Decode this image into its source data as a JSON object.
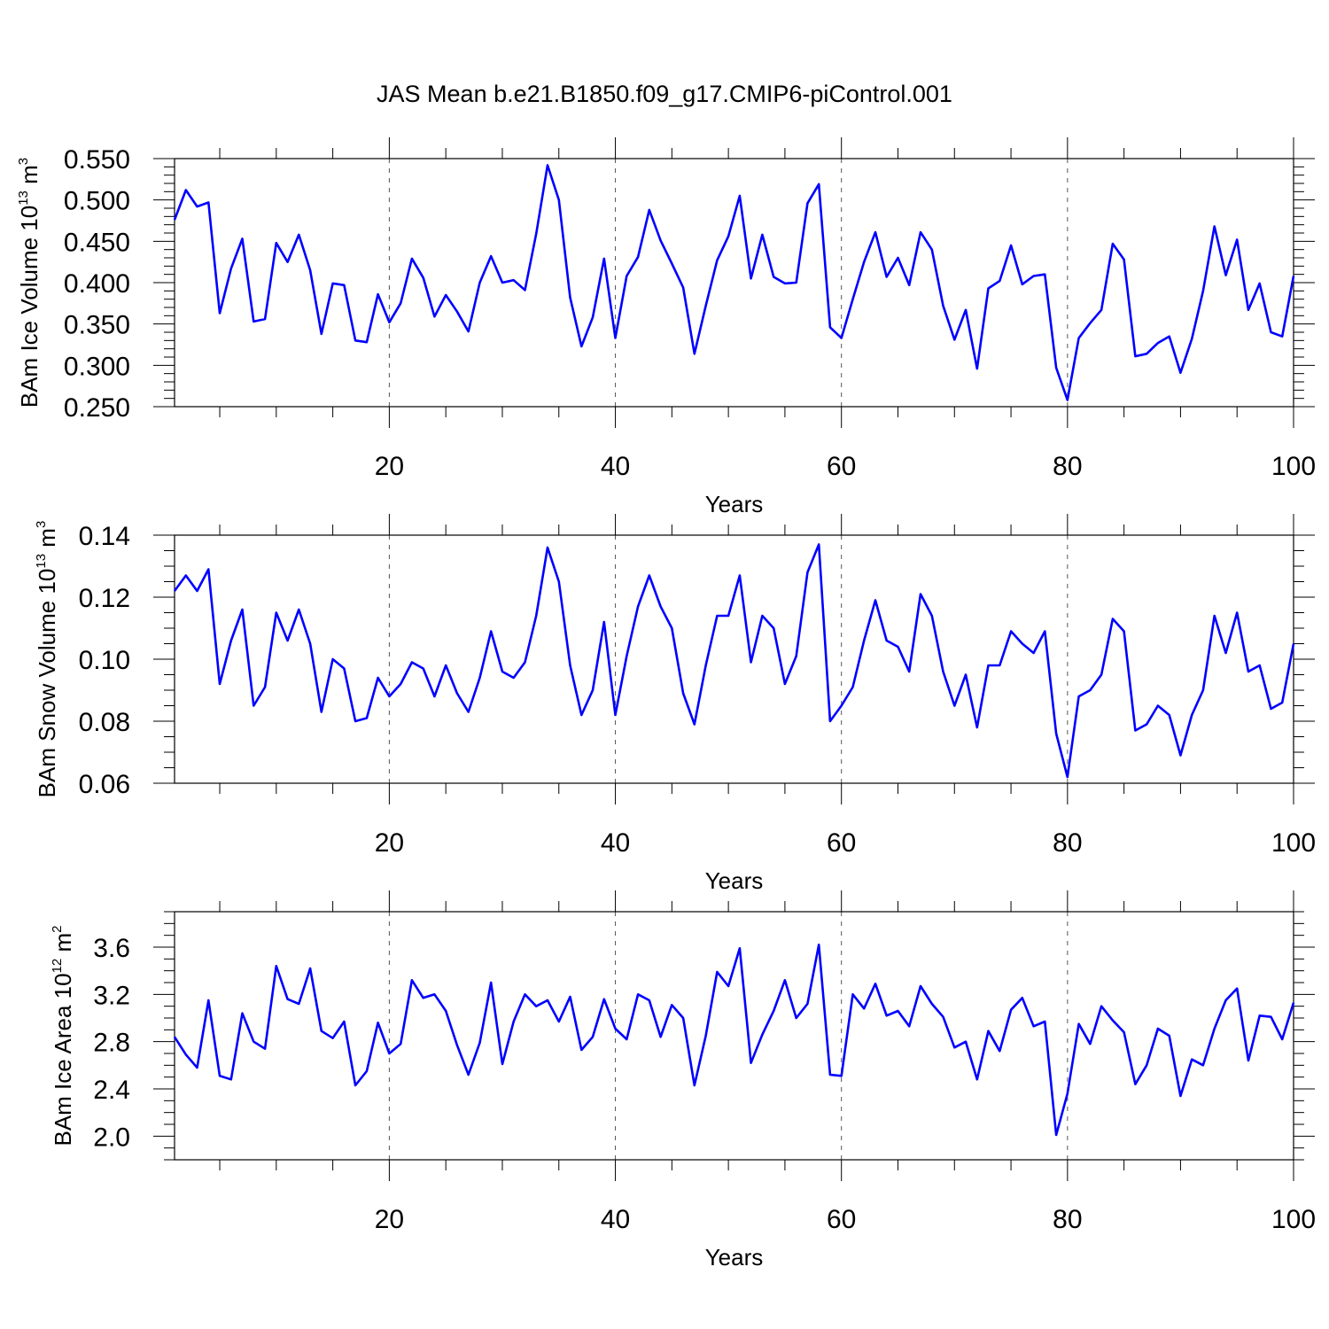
{
  "title": "JAS Mean b.e21.B1850.f09_g17.CMIP6-piControl.001",
  "chart_data": [
    {
      "type": "line",
      "title": "JAS Mean b.e21.B1850.f09_g17.CMIP6-piControl.001",
      "xlabel": "Years",
      "ylabel": {
        "main": "BAm Ice Volume 10",
        "sup": "13",
        "unit": " m",
        "unit_sup": "3"
      },
      "xlim": [
        1,
        100
      ],
      "ylim": [
        0.25,
        0.55
      ],
      "xticks": [
        20,
        40,
        60,
        80,
        100
      ],
      "xtick_labels": [
        "20",
        "40",
        "60",
        "80",
        "100"
      ],
      "yticks": [
        0.25,
        0.3,
        0.35,
        0.4,
        0.45,
        0.5,
        0.55
      ],
      "ytick_labels": [
        "0.250",
        "0.300",
        "0.350",
        "0.400",
        "0.450",
        "0.500",
        "0.550"
      ],
      "series": [
        {
          "name": "BAm Ice Volume",
          "color": "#0000ff",
          "x_start": 1,
          "values": [
            0.476,
            0.512,
            0.492,
            0.497,
            0.363,
            0.417,
            0.453,
            0.353,
            0.356,
            0.448,
            0.425,
            0.458,
            0.415,
            0.338,
            0.399,
            0.397,
            0.33,
            0.328,
            0.386,
            0.352,
            0.375,
            0.429,
            0.406,
            0.359,
            0.385,
            0.365,
            0.341,
            0.4,
            0.432,
            0.4,
            0.403,
            0.391,
            0.459,
            0.542,
            0.5,
            0.382,
            0.323,
            0.358,
            0.429,
            0.333,
            0.408,
            0.431,
            0.488,
            0.451,
            0.423,
            0.394,
            0.314,
            0.372,
            0.427,
            0.456,
            0.505,
            0.405,
            0.458,
            0.407,
            0.399,
            0.4,
            0.496,
            0.519,
            0.346,
            0.333,
            0.38,
            0.425,
            0.461,
            0.407,
            0.43,
            0.397,
            0.461,
            0.44,
            0.372,
            0.331,
            0.367,
            0.296,
            0.393,
            0.402,
            0.445,
            0.398,
            0.408,
            0.41,
            0.297,
            0.258,
            0.333,
            0.351,
            0.367,
            0.447,
            0.428,
            0.311,
            0.314,
            0.327,
            0.335,
            0.291,
            0.332,
            0.39,
            0.468,
            0.409,
            0.452,
            0.367,
            0.399,
            0.34,
            0.335,
            0.408
          ]
        }
      ],
      "grid_x": [
        20,
        40,
        60,
        80
      ]
    },
    {
      "type": "line",
      "xlabel": "Years",
      "ylabel": {
        "main": "BAm Snow Volume 10",
        "sup": "13",
        "unit": " m",
        "unit_sup": "3"
      },
      "xlim": [
        1,
        100
      ],
      "ylim": [
        0.06,
        0.14
      ],
      "xticks": [
        20,
        40,
        60,
        80,
        100
      ],
      "xtick_labels": [
        "20",
        "40",
        "60",
        "80",
        "100"
      ],
      "yticks": [
        0.06,
        0.08,
        0.1,
        0.12,
        0.14
      ],
      "ytick_labels": [
        "0.06",
        "0.08",
        "0.10",
        "0.12",
        "0.14"
      ],
      "series": [
        {
          "name": "BAm Snow Volume",
          "color": "#0000ff",
          "x_start": 1,
          "values": [
            0.122,
            0.127,
            0.122,
            0.129,
            0.092,
            0.106,
            0.116,
            0.085,
            0.091,
            0.115,
            0.106,
            0.116,
            0.105,
            0.083,
            0.1,
            0.097,
            0.08,
            0.081,
            0.094,
            0.088,
            0.092,
            0.099,
            0.097,
            0.088,
            0.098,
            0.089,
            0.083,
            0.094,
            0.109,
            0.096,
            0.094,
            0.099,
            0.114,
            0.136,
            0.125,
            0.098,
            0.082,
            0.09,
            0.112,
            0.082,
            0.101,
            0.117,
            0.127,
            0.117,
            0.11,
            0.089,
            0.079,
            0.098,
            0.114,
            0.114,
            0.127,
            0.099,
            0.114,
            0.11,
            0.092,
            0.101,
            0.128,
            0.137,
            0.08,
            0.085,
            0.091,
            0.106,
            0.119,
            0.106,
            0.104,
            0.096,
            0.121,
            0.114,
            0.096,
            0.085,
            0.095,
            0.078,
            0.098,
            0.098,
            0.109,
            0.105,
            0.102,
            0.109,
            0.076,
            0.062,
            0.088,
            0.09,
            0.095,
            0.113,
            0.109,
            0.077,
            0.079,
            0.085,
            0.082,
            0.069,
            0.082,
            0.09,
            0.114,
            0.102,
            0.115,
            0.096,
            0.098,
            0.084,
            0.086,
            0.105
          ]
        }
      ],
      "grid_x": [
        20,
        40,
        60,
        80
      ]
    },
    {
      "type": "line",
      "xlabel": "Years",
      "ylabel": {
        "main": "BAm Ice Area 10",
        "sup": "12",
        "unit": " m",
        "unit_sup": "2"
      },
      "xlim": [
        1,
        100
      ],
      "ylim": [
        1.8,
        3.9
      ],
      "xticks": [
        20,
        40,
        60,
        80,
        100
      ],
      "xtick_labels": [
        "20",
        "40",
        "60",
        "80",
        "100"
      ],
      "yticks": [
        2.0,
        2.4,
        2.8,
        3.2,
        3.6
      ],
      "ytick_labels": [
        "2.0",
        "2.4",
        "2.8",
        "3.2",
        "3.6"
      ],
      "series": [
        {
          "name": "BAm Ice Area",
          "color": "#0000ff",
          "x_start": 1,
          "values": [
            2.84,
            2.69,
            2.58,
            3.15,
            2.51,
            2.48,
            3.04,
            2.8,
            2.74,
            3.44,
            3.16,
            3.12,
            3.42,
            2.89,
            2.83,
            2.97,
            2.43,
            2.55,
            2.96,
            2.7,
            2.78,
            3.32,
            3.17,
            3.2,
            3.06,
            2.77,
            2.52,
            2.79,
            3.3,
            2.61,
            2.97,
            3.2,
            3.1,
            3.15,
            2.97,
            3.18,
            2.73,
            2.84,
            3.16,
            2.91,
            2.82,
            3.2,
            3.15,
            2.84,
            3.11,
            3.0,
            2.43,
            2.85,
            3.39,
            3.27,
            3.59,
            2.62,
            2.86,
            3.06,
            3.32,
            3.0,
            3.12,
            3.62,
            2.52,
            2.51,
            3.2,
            3.08,
            3.29,
            3.02,
            3.06,
            2.93,
            3.27,
            3.12,
            3.01,
            2.75,
            2.8,
            2.48,
            2.89,
            2.72,
            3.07,
            3.17,
            2.93,
            2.97,
            2.01,
            2.36,
            2.95,
            2.78,
            3.1,
            2.98,
            2.88,
            2.44,
            2.6,
            2.91,
            2.85,
            2.34,
            2.65,
            2.6,
            2.91,
            3.15,
            3.25,
            2.64,
            3.02,
            3.01,
            2.82,
            3.13
          ]
        }
      ],
      "grid_x": [
        20,
        40,
        60,
        80
      ]
    }
  ]
}
